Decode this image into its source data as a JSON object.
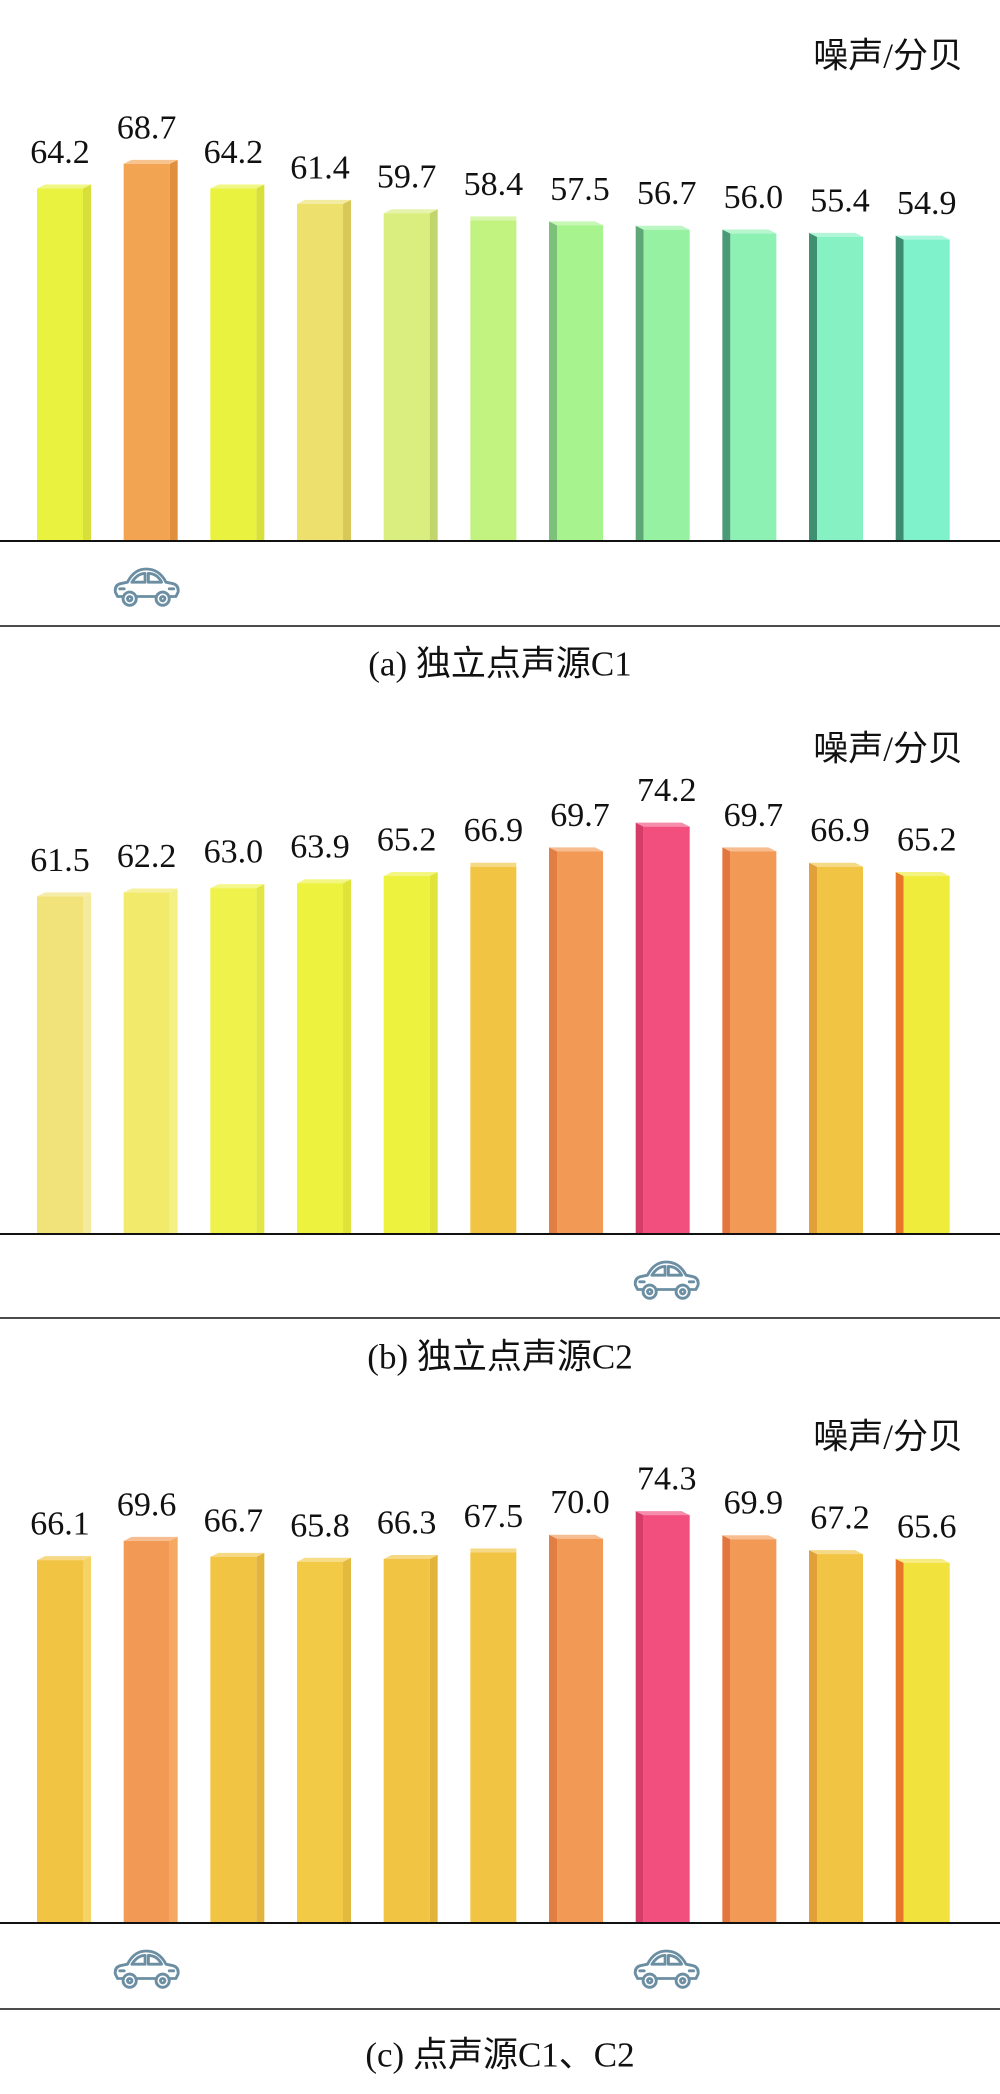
{
  "chart_data": [
    {
      "type": "bar",
      "ylabel": "噪声/分贝",
      "caption": "(a) 独立点声源C1",
      "values": [
        64.2,
        68.7,
        64.2,
        61.4,
        59.7,
        58.4,
        57.5,
        56.7,
        56.0,
        55.4,
        54.9
      ],
      "colors": [
        "#e9f23f",
        "#f2a452",
        "#e9f23f",
        "#ede06c",
        "#d9ee7e",
        "#c2f27f",
        "#a7f38d",
        "#96f2a2",
        "#8ef1b4",
        "#86f1c2",
        "#7ff2cc"
      ],
      "side_colors": [
        "#d7df3a",
        "#e08f3e",
        "#d7df3a",
        "#d8c85a",
        "#c2d56c",
        "#aadc70",
        "#7cc07a",
        "#5ea878",
        "#4a9a78",
        "#3f8f72",
        "#3d8a70"
      ],
      "car_under_bar_index": [
        1
      ]
    },
    {
      "type": "bar",
      "ylabel": "噪声/分贝",
      "caption": "(b) 独立点声源C2",
      "values": [
        61.5,
        62.2,
        63.0,
        63.9,
        65.2,
        66.9,
        69.7,
        74.2,
        69.7,
        66.9,
        65.2
      ],
      "colors": [
        "#f1e27a",
        "#f2ea6a",
        "#eef24a",
        "#edf23e",
        "#edf23e",
        "#f1c444",
        "#f29a55",
        "#f24f7f",
        "#f29a55",
        "#f1c444",
        "#f0ec3c"
      ],
      "side_colors": [
        "#f5eb9e",
        "#f4f084",
        "#e2e642",
        "#e0e43a",
        "#e0e43a",
        "#e2b43c",
        "#e07e44",
        "#d63c68",
        "#e2763c",
        "#e2a03a",
        "#e8762a"
      ],
      "car_under_bar_index": [
        7
      ]
    },
    {
      "type": "bar",
      "ylabel": "噪声/分贝",
      "caption": "(c) 点声源C1、C2",
      "values": [
        66.1,
        69.6,
        66.7,
        65.8,
        66.3,
        67.5,
        70.0,
        74.3,
        69.9,
        67.2,
        65.6
      ],
      "colors": [
        "#f1c444",
        "#f29a55",
        "#f1c444",
        "#f2ca46",
        "#f1c444",
        "#f1c444",
        "#f29a55",
        "#f24f7f",
        "#f29a55",
        "#f1c444",
        "#f1e23e"
      ],
      "side_colors": [
        "#f4d466",
        "#f4a862",
        "#e2b43c",
        "#e2ba40",
        "#e2b43c",
        "#e2b43c",
        "#e07e44",
        "#d63c68",
        "#e2763c",
        "#e2a03a",
        "#e8762a"
      ],
      "car_under_bar_index": [
        1,
        7
      ]
    }
  ],
  "icon_color": "#6b8ea3"
}
